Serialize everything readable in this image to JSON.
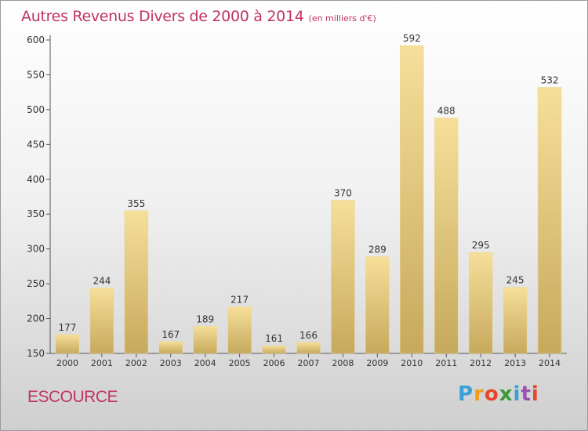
{
  "title": "Autres Revenus Divers de 2000 à 2014",
  "subtitle": "(en milliers d'€)",
  "commune": "ESCOURCE",
  "logo": {
    "letters": [
      "P",
      "r",
      "o",
      "x",
      "i",
      "t",
      "i"
    ],
    "colors": [
      "#3aa0d8",
      "#f29a1e",
      "#e8452c",
      "#3a9a3a",
      "#3aa0d8",
      "#9a4fb4",
      "#e8452c"
    ]
  },
  "colors": {
    "bar_top": "#f6df9a",
    "bar_bottom": "#c6a95c",
    "text": "#333333",
    "accent": "#c0335f"
  },
  "chart_data": {
    "type": "bar",
    "categories": [
      "2000",
      "2001",
      "2002",
      "2003",
      "2004",
      "2005",
      "2006",
      "2007",
      "2008",
      "2009",
      "2010",
      "2011",
      "2012",
      "2013",
      "2014"
    ],
    "values": [
      177,
      244,
      355,
      167,
      189,
      217,
      161,
      166,
      370,
      289,
      592,
      488,
      295,
      245,
      532
    ],
    "title": "Autres Revenus Divers de 2000 à 2014",
    "subtitle": "(en milliers d'€)",
    "ylim": [
      150,
      600
    ],
    "yticks": [
      150,
      200,
      250,
      300,
      350,
      400,
      450,
      500,
      550,
      600
    ],
    "grid": false,
    "data_labels": true
  }
}
